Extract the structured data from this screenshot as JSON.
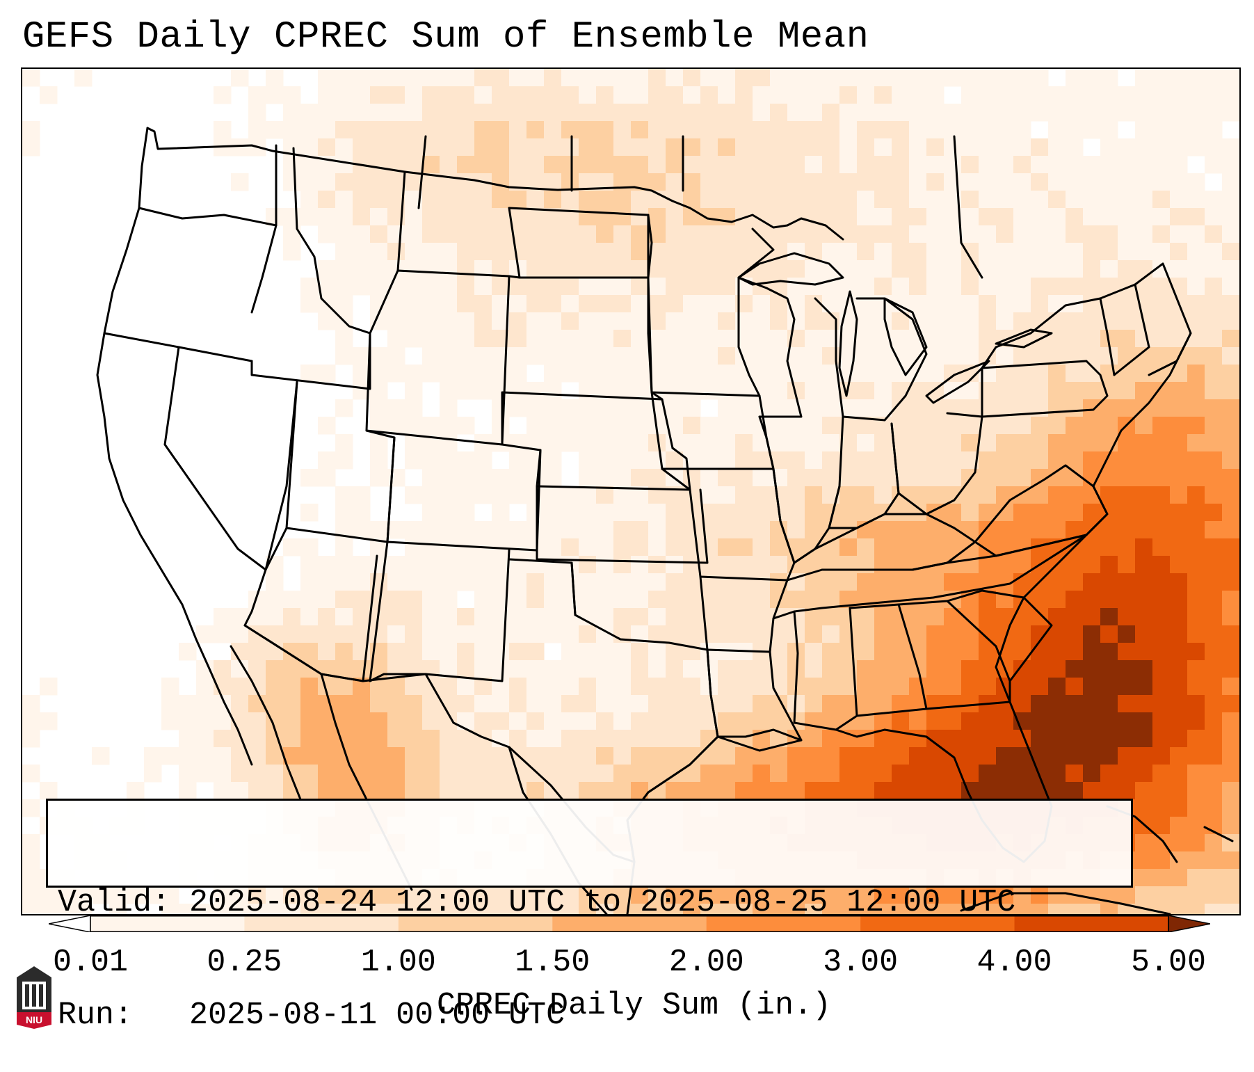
{
  "title": "GEFS Daily CPREC Sum of Ensemble Mean",
  "info": {
    "valid_label": "Valid:",
    "valid_value": "2025-08-24 12:00 UTC to 2025-08-25 12:00 UTC",
    "run_label": "Run:",
    "run_value": "2025-08-11 00:00 UTC"
  },
  "colorbar": {
    "label": "CPREC Daily Sum (in.)",
    "ticks": [
      "0.01",
      "0.25",
      "1.00",
      "1.50",
      "2.00",
      "3.00",
      "4.00",
      "5.00"
    ],
    "levels": [
      0.01,
      0.25,
      1.0,
      1.5,
      2.0,
      3.0,
      4.0,
      5.0
    ],
    "colors": [
      "#fff5eb",
      "#fee6ce",
      "#fdd0a2",
      "#fdae6b",
      "#fd8d3c",
      "#f16913",
      "#d94801",
      "#8c2d04"
    ],
    "under_color": "#ffffff",
    "over_color": "#7f2704"
  },
  "logo": {
    "name": "NIU"
  },
  "colors": {
    "frame": "#000000",
    "state_lines": "#000000"
  }
}
